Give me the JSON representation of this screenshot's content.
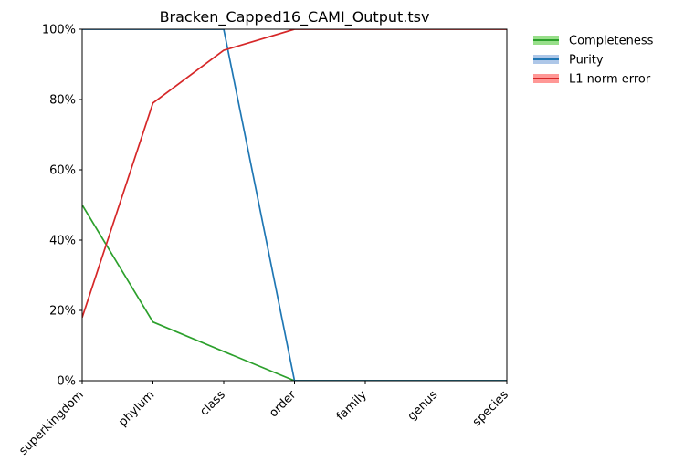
{
  "chart_data": {
    "type": "line",
    "title": "Bracken_Capped16_CAMI_Output.tsv",
    "xlabel": "",
    "ylabel": "",
    "categories": [
      "superkingdom",
      "phylum",
      "class",
      "order",
      "family",
      "genus",
      "species"
    ],
    "ylim": [
      0,
      1
    ],
    "yticks": [
      {
        "value": 0,
        "label": "0%"
      },
      {
        "value": 0.2,
        "label": "20%"
      },
      {
        "value": 0.4,
        "label": "40%"
      },
      {
        "value": 0.6,
        "label": "60%"
      },
      {
        "value": 0.8,
        "label": "80%"
      },
      {
        "value": 1,
        "label": "100%"
      }
    ],
    "grid": false,
    "legend_position": "outside-top-right",
    "series": [
      {
        "name": "Completeness",
        "color": "#2ca02c",
        "band_color": "#98df8a",
        "values": [
          0.5,
          0.167,
          0.083,
          0,
          0,
          0,
          0
        ]
      },
      {
        "name": "Purity",
        "color": "#1f77b4",
        "band_color": "#aec7e8",
        "values": [
          1,
          1,
          1,
          0,
          0,
          0,
          0
        ]
      },
      {
        "name": "L1 norm error",
        "color": "#d62728",
        "band_color": "#ff9896",
        "values": [
          0.18,
          0.79,
          0.94,
          1,
          1,
          1,
          1
        ]
      }
    ]
  }
}
